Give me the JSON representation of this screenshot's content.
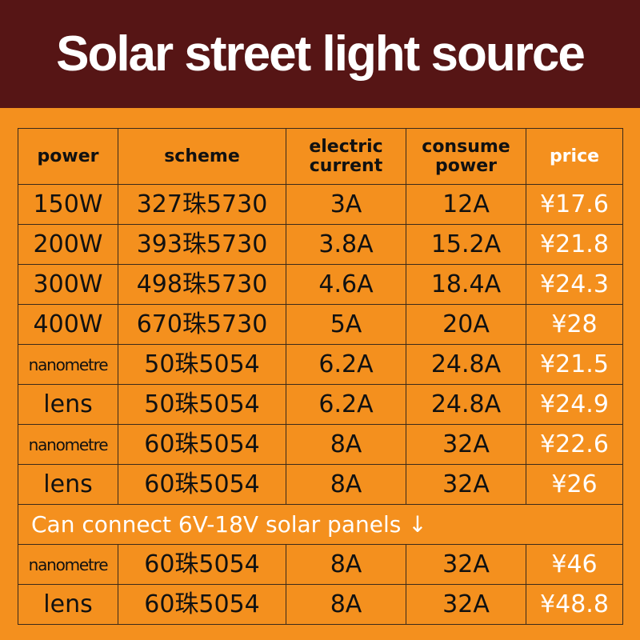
{
  "header": {
    "title": "Solar street light source"
  },
  "table": {
    "columns": [
      "power",
      "scheme",
      "electric current",
      "consume power",
      "price"
    ],
    "rows": [
      [
        "150W",
        "327珠5730",
        "3A",
        "12A",
        "¥17.6"
      ],
      [
        "200W",
        "393珠5730",
        "3.8A",
        "15.2A",
        "¥21.8"
      ],
      [
        "300W",
        "498珠5730",
        "4.6A",
        "18.4A",
        "¥24.3"
      ],
      [
        "400W",
        "670珠5730",
        "5A",
        "20A",
        "¥28"
      ],
      [
        "nanometre",
        "50珠5054",
        "6.2A",
        "24.8A",
        "¥21.5"
      ],
      [
        "lens",
        "50珠5054",
        "6.2A",
        "24.8A",
        "¥24.9"
      ],
      [
        "nanometre",
        "60珠5054",
        "8A",
        "32A",
        "¥22.6"
      ],
      [
        "lens",
        "60珠5054",
        "8A",
        "32A",
        "¥26"
      ]
    ],
    "note": "Can connect 6V-18V solar panels ↓",
    "extra_rows": [
      [
        "nanometre",
        "60珠5054",
        "8A",
        "32A",
        "¥46"
      ],
      [
        "lens",
        "60珠5054",
        "8A",
        "32A",
        "¥48.8"
      ]
    ]
  }
}
